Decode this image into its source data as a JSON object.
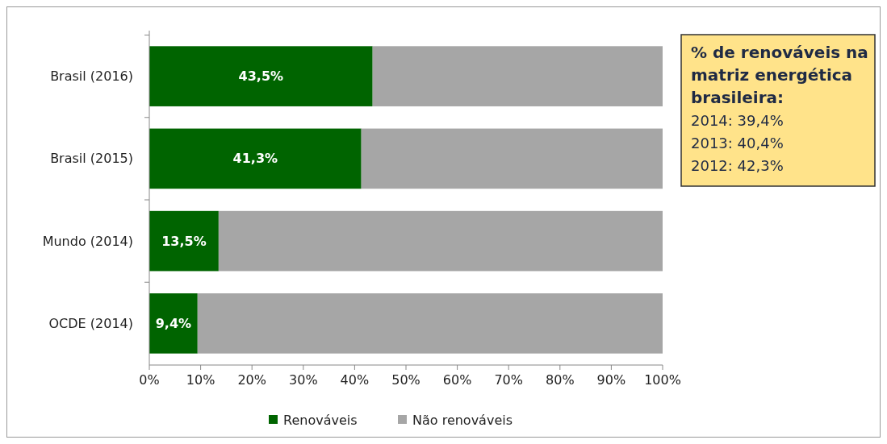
{
  "chart_data": {
    "type": "bar",
    "orientation": "horizontal",
    "stacked": true,
    "categories": [
      "Brasil (2016)",
      "Brasil (2015)",
      "Mundo (2014)",
      "OCDE (2014)"
    ],
    "series": [
      {
        "name": "Renováveis",
        "color": "#006400",
        "values": [
          43.5,
          41.3,
          13.5,
          9.4
        ],
        "value_labels": [
          "43,5%",
          "41,3%",
          "13,5%",
          "9,4%"
        ]
      },
      {
        "name": "Não renováveis",
        "color": "#a6a6a6",
        "values": [
          56.5,
          58.7,
          86.5,
          90.6
        ]
      }
    ],
    "xlim": [
      0,
      100
    ],
    "xticks": [
      {
        "value": 0,
        "label": "0%"
      },
      {
        "value": 10,
        "label": "10%"
      },
      {
        "value": 20,
        "label": "20%"
      },
      {
        "value": 30,
        "label": "30%"
      },
      {
        "value": 40,
        "label": "40%"
      },
      {
        "value": 50,
        "label": "50%"
      },
      {
        "value": 60,
        "label": "60%"
      },
      {
        "value": 70,
        "label": "70%"
      },
      {
        "value": 80,
        "label": "80%"
      },
      {
        "value": 90,
        "label": "90%"
      },
      {
        "value": 100,
        "label": "100%"
      }
    ],
    "legend": "bottom",
    "annotations": [
      "% de renováveis na matriz energética brasileira:",
      "2014: 39,4%",
      "2013: 40,4%",
      "2012: 42,3%"
    ]
  }
}
